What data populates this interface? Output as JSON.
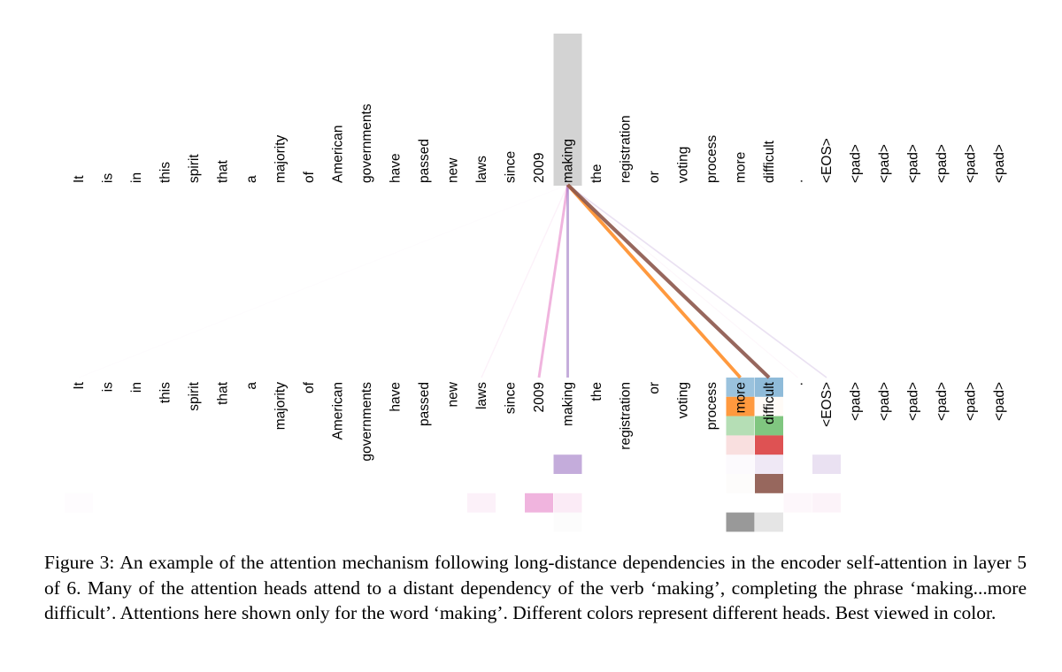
{
  "tokens": [
    "It",
    "is",
    "in",
    "this",
    "spirit",
    "that",
    "a",
    "majority",
    "of",
    "American",
    "governments",
    "have",
    "passed",
    "new",
    "laws",
    "since",
    "2009",
    "making",
    "the",
    "registration",
    "or",
    "voting",
    "process",
    "more",
    "difficult",
    ".",
    "<EOS>",
    "<pad>",
    "<pad>",
    "<pad>",
    "<pad>",
    "<pad>",
    "<pad>"
  ],
  "query_word": "making",
  "heads": [
    {
      "color": "#1f77b4"
    },
    {
      "color": "#ff7f0e"
    },
    {
      "color": "#2ca02c"
    },
    {
      "color": "#d62728"
    },
    {
      "color": "#9467bd"
    },
    {
      "color": "#8c564b"
    },
    {
      "color": "#e377c2"
    },
    {
      "color": "#7f7f7f"
    }
  ],
  "attention": [
    {
      "head": 0,
      "target": "more",
      "weight": 0.45
    },
    {
      "head": 0,
      "target": "difficult",
      "weight": 0.5
    },
    {
      "head": 1,
      "target": "more",
      "weight": 0.8
    },
    {
      "head": 1,
      "target": "difficult",
      "weight": 0.03
    },
    {
      "head": 2,
      "target": "more",
      "weight": 0.35
    },
    {
      "head": 2,
      "target": "difficult",
      "weight": 0.6
    },
    {
      "head": 3,
      "target": "more",
      "weight": 0.15
    },
    {
      "head": 3,
      "target": "difficult",
      "weight": 0.8
    },
    {
      "head": 4,
      "target": "making",
      "weight": 0.55
    },
    {
      "head": 4,
      "target": "more",
      "weight": 0.03
    },
    {
      "head": 4,
      "target": "difficult",
      "weight": 0.15
    },
    {
      "head": 4,
      "target": "<EOS>",
      "weight": 0.2
    },
    {
      "head": 5,
      "target": "more",
      "weight": 0.02
    },
    {
      "head": 5,
      "target": "difficult",
      "weight": 0.9
    },
    {
      "head": 6,
      "target": "It",
      "weight": 0.02
    },
    {
      "head": 6,
      "target": "laws",
      "weight": 0.1
    },
    {
      "head": 6,
      "target": "2009",
      "weight": 0.55
    },
    {
      "head": 6,
      "target": "making",
      "weight": 0.15
    },
    {
      "head": 6,
      "target": ".",
      "weight": 0.06
    },
    {
      "head": 6,
      "target": "<EOS>",
      "weight": 0.09
    },
    {
      "head": 7,
      "target": "making",
      "weight": 0.02
    },
    {
      "head": 7,
      "target": "more",
      "weight": 0.8
    },
    {
      "head": 7,
      "target": "difficult",
      "weight": 0.2
    }
  ],
  "caption": {
    "label": "Figure 3:",
    "text": "An example of the attention mechanism following long-distance dependencies in the encoder self-attention in layer 5 of 6. Many of the attention heads attend to a distant dependency of the verb ‘making’, completing the phrase ‘making...more difficult’. Attentions here shown only for the word ‘making’. Different colors represent different heads. Best viewed in color."
  }
}
